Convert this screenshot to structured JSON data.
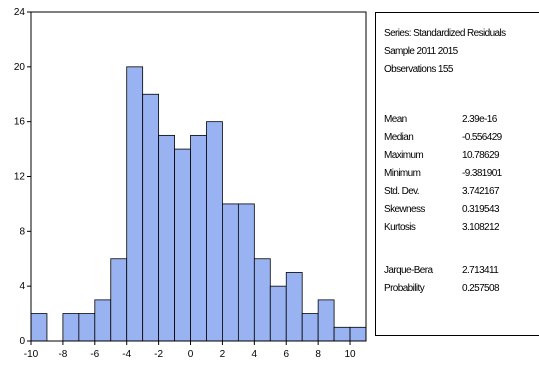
{
  "chart_data": {
    "type": "bar",
    "title": "",
    "xlabel": "",
    "ylabel": "",
    "bin_width": 1,
    "bins": [
      {
        "start": -10,
        "end": -9,
        "count": 2
      },
      {
        "start": -9,
        "end": -8,
        "count": 0
      },
      {
        "start": -8,
        "end": -7,
        "count": 2
      },
      {
        "start": -7,
        "end": -6,
        "count": 2
      },
      {
        "start": -6,
        "end": -5,
        "count": 3
      },
      {
        "start": -5,
        "end": -4,
        "count": 6
      },
      {
        "start": -4,
        "end": -3,
        "count": 20
      },
      {
        "start": -3,
        "end": -2,
        "count": 18
      },
      {
        "start": -2,
        "end": -1,
        "count": 15
      },
      {
        "start": -1,
        "end": 0,
        "count": 14
      },
      {
        "start": 0,
        "end": 1,
        "count": 15
      },
      {
        "start": 1,
        "end": 2,
        "count": 16
      },
      {
        "start": 2,
        "end": 3,
        "count": 10
      },
      {
        "start": 3,
        "end": 4,
        "count": 10
      },
      {
        "start": 4,
        "end": 5,
        "count": 6
      },
      {
        "start": 5,
        "end": 6,
        "count": 4
      },
      {
        "start": 6,
        "end": 7,
        "count": 5
      },
      {
        "start": 7,
        "end": 8,
        "count": 2
      },
      {
        "start": 8,
        "end": 9,
        "count": 3
      },
      {
        "start": 9,
        "end": 10,
        "count": 1
      },
      {
        "start": 10,
        "end": 11,
        "count": 1
      }
    ],
    "xlim": [
      -10,
      11
    ],
    "ylim": [
      0,
      24
    ],
    "x_ticks": [
      -10,
      -8,
      -6,
      -4,
      -2,
      0,
      2,
      4,
      6,
      8,
      10
    ],
    "y_ticks": [
      0,
      4,
      8,
      12,
      16,
      20,
      24
    ],
    "bar_color": "#99b3f2",
    "grid": false
  },
  "stats": {
    "series_line": "Series: Standardized Residuals",
    "sample_line": "Sample 2011 2015",
    "observations_line": "Observations 155",
    "rows": [
      {
        "label": "Mean",
        "value": "2.39e-16"
      },
      {
        "label": "Median",
        "value": "-0.556429"
      },
      {
        "label": "Maximum",
        "value": "10.78629"
      },
      {
        "label": "Minimum",
        "value": "-9.381901"
      },
      {
        "label": "Std. Dev.",
        "value": "3.742167"
      },
      {
        "label": "Skewness",
        "value": "0.319543"
      },
      {
        "label": "Kurtosis",
        "value": "3.108212"
      }
    ],
    "test_rows": [
      {
        "label": "Jarque-Bera",
        "value": "2.713411"
      },
      {
        "label": "Probability",
        "value": "0.257508"
      }
    ]
  }
}
